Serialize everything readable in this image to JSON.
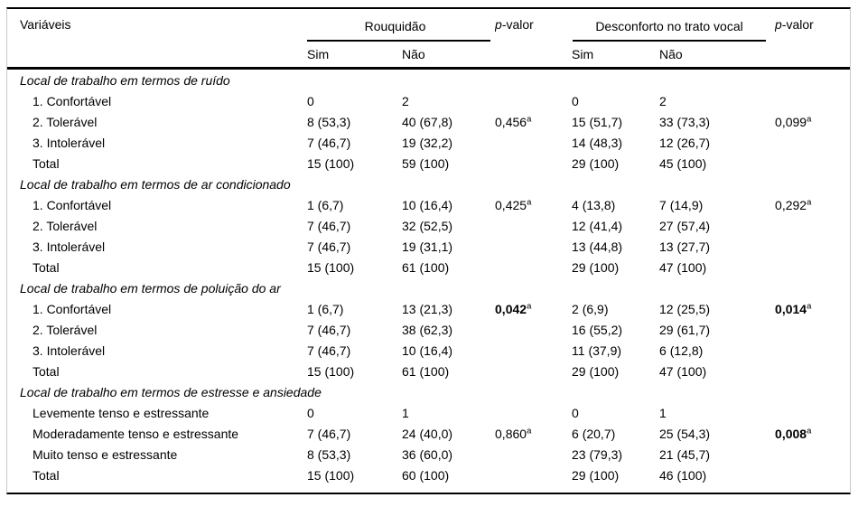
{
  "table": {
    "header": {
      "variables_label": "Variáveis",
      "group1": "Rouquidão",
      "group2": "Desconforto no trato vocal",
      "pvalue_label_1": "p-valor",
      "pvalue_label_2": "p-valor",
      "sub_yes_1": "Sim",
      "sub_no_1": "Não",
      "sub_yes_2": "Sim",
      "sub_no_2": "Não"
    },
    "sections": [
      {
        "title": "Local de trabalho em termos de ruído",
        "rows": [
          {
            "label": "1. Confortável",
            "r_sim": "0",
            "r_nao": "2",
            "p1": null,
            "d_sim": "0",
            "d_nao": "2",
            "p2": null
          },
          {
            "label": "2. Tolerável",
            "r_sim": "8 (53,3)",
            "r_nao": "40 (67,8)",
            "p1": {
              "value": "0,456",
              "sup": "a",
              "bold": false
            },
            "d_sim": "15 (51,7)",
            "d_nao": "33 (73,3)",
            "p2": {
              "value": "0,099",
              "sup": "a",
              "bold": false
            }
          },
          {
            "label": "3. Intolerável",
            "r_sim": "7 (46,7)",
            "r_nao": "19 (32,2)",
            "p1": null,
            "d_sim": "14 (48,3)",
            "d_nao": "12 (26,7)",
            "p2": null
          },
          {
            "label": "Total",
            "r_sim": "15 (100)",
            "r_nao": "59 (100)",
            "p1": null,
            "d_sim": "29 (100)",
            "d_nao": "45 (100)",
            "p2": null
          }
        ]
      },
      {
        "title": "Local de trabalho em termos de ar condicionado",
        "rows": [
          {
            "label": "1. Confortável",
            "r_sim": "1 (6,7)",
            "r_nao": "10 (16,4)",
            "p1": {
              "value": "0,425",
              "sup": "a",
              "bold": false
            },
            "d_sim": "4 (13,8)",
            "d_nao": "7 (14,9)",
            "p2": {
              "value": "0,292",
              "sup": "a",
              "bold": false
            }
          },
          {
            "label": "2. Tolerável",
            "r_sim": "7 (46,7)",
            "r_nao": "32 (52,5)",
            "p1": null,
            "d_sim": "12 (41,4)",
            "d_nao": "27 (57,4)",
            "p2": null
          },
          {
            "label": "3. Intolerável",
            "r_sim": "7 (46,7)",
            "r_nao": "19 (31,1)",
            "p1": null,
            "d_sim": "13 (44,8)",
            "d_nao": "13 (27,7)",
            "p2": null
          },
          {
            "label": "Total",
            "r_sim": "15 (100)",
            "r_nao": "61 (100)",
            "p1": null,
            "d_sim": "29 (100)",
            "d_nao": "47 (100)",
            "p2": null
          }
        ]
      },
      {
        "title": "Local de trabalho em termos de poluição do ar",
        "rows": [
          {
            "label": "1. Confortável",
            "r_sim": "1 (6,7)",
            "r_nao": "13 (21,3)",
            "p1": {
              "value": "0,042",
              "sup": "a",
              "bold": true
            },
            "d_sim": "2 (6,9)",
            "d_nao": "12 (25,5)",
            "p2": {
              "value": "0,014",
              "sup": "a",
              "bold": true
            }
          },
          {
            "label": "2. Tolerável",
            "r_sim": "7 (46,7)",
            "r_nao": "38 (62,3)",
            "p1": null,
            "d_sim": "16 (55,2)",
            "d_nao": "29 (61,7)",
            "p2": null
          },
          {
            "label": "3. Intolerável",
            "r_sim": "7 (46,7)",
            "r_nao": "10 (16,4)",
            "p1": null,
            "d_sim": "11 (37,9)",
            "d_nao": "6 (12,8)",
            "p2": null
          },
          {
            "label": "Total",
            "r_sim": "15 (100)",
            "r_nao": "61 (100)",
            "p1": null,
            "d_sim": "29 (100)",
            "d_nao": "47 (100)",
            "p2": null
          }
        ]
      },
      {
        "title": "Local de trabalho em termos de estresse e ansiedade",
        "rows": [
          {
            "label": "Levemente tenso e estressante",
            "r_sim": "0",
            "r_nao": "1",
            "p1": null,
            "d_sim": "0",
            "d_nao": "1",
            "p2": null
          },
          {
            "label": "Moderadamente tenso e estressante",
            "r_sim": "7 (46,7)",
            "r_nao": "24 (40,0)",
            "p1": {
              "value": "0,860",
              "sup": "a",
              "bold": false
            },
            "d_sim": "6 (20,7)",
            "d_nao": "25 (54,3)",
            "p2": {
              "value": "0,008",
              "sup": "a",
              "bold": true
            }
          },
          {
            "label": "Muito tenso e estressante",
            "r_sim": "8 (53,3)",
            "r_nao": "36 (60,0)",
            "p1": null,
            "d_sim": "23 (79,3)",
            "d_nao": "21 (45,7)",
            "p2": null
          },
          {
            "label": "Total",
            "r_sim": "15 (100)",
            "r_nao": "60 (100)",
            "p1": null,
            "d_sim": "29 (100)",
            "d_nao": "46 (100)",
            "p2": null
          }
        ]
      }
    ]
  }
}
